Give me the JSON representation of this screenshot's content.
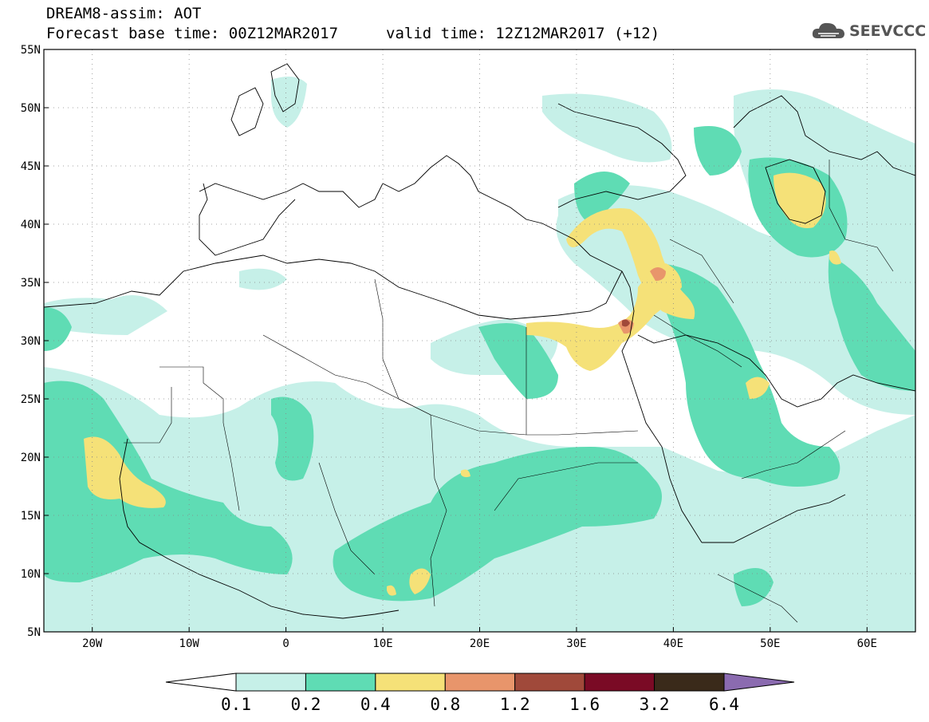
{
  "title": {
    "line1": "DREAM8-assim: AOT",
    "line2": "Forecast base time: 00Z12MAR2017",
    "valid": "valid time: 12Z12MAR2017 (+12)"
  },
  "logo": {
    "text": "SEEVCCC",
    "icon": "cloud-icon"
  },
  "map": {
    "lon_range": [
      -25,
      65
    ],
    "lat_range": [
      5,
      55
    ],
    "lat_ticks": [
      "55N",
      "50N",
      "45N",
      "40N",
      "35N",
      "30N",
      "25N",
      "20N",
      "15N",
      "10N",
      "5N"
    ],
    "lon_ticks": [
      "20W",
      "10W",
      "0",
      "10E",
      "20E",
      "30E",
      "40E",
      "50E",
      "60E"
    ]
  },
  "colorbar": {
    "labels": [
      "0.1",
      "0.2",
      "0.4",
      "0.8",
      "1.2",
      "1.6",
      "3.2",
      "6.4"
    ],
    "colors": [
      "#ffffff",
      "#c6f0e8",
      "#5fdcb4",
      "#f5e178",
      "#e8956b",
      "#a0493a",
      "#7a0a25",
      "#3a2a1a",
      "#8b6bb0"
    ]
  }
}
